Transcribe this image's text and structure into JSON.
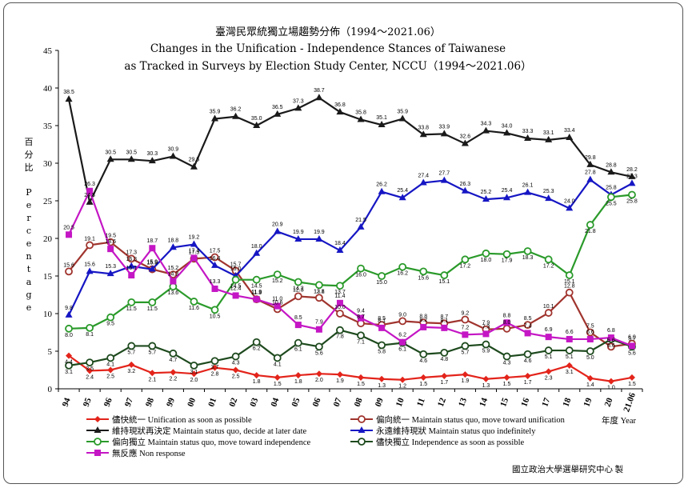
{
  "chart_data": {
    "type": "line",
    "title_zh": "臺灣民眾統獨立場趨勢分佈（1994～2021.06）",
    "title_en_1": "Changes in the Unification - Independence Stances of Taiwanese",
    "title_en_2": "as Tracked in Surveys by Election Study Center, NCCU（1994～2021.06）",
    "ylabel_zh": "百分比",
    "ylabel_en": "Percentage",
    "xlabel": "年度 Year",
    "credit": "國立政治大學選舉研究中心 製",
    "ylim": [
      0,
      45
    ],
    "yticks": [
      0,
      5,
      10,
      15,
      20,
      25,
      30,
      35,
      40,
      45
    ],
    "grid": false,
    "legend_position": "bottom",
    "categories": [
      "94",
      "95",
      "96",
      "97",
      "98",
      "99",
      "00",
      "01",
      "02",
      "03",
      "04",
      "05",
      "06",
      "07",
      "08",
      "09",
      "10",
      "11",
      "12",
      "13",
      "14",
      "15",
      "16",
      "17",
      "18",
      "19",
      "20",
      "21.06"
    ],
    "series": [
      {
        "name": "儘快統一 Unification as soon as possible",
        "color": "#e3241b",
        "marker": "diamond",
        "values": [
          4.4,
          2.4,
          2.5,
          3.2,
          2.1,
          2.2,
          2.0,
          2.8,
          2.5,
          1.8,
          1.5,
          1.8,
          2.0,
          1.9,
          1.5,
          1.3,
          1.2,
          1.5,
          1.7,
          1.9,
          1.3,
          1.5,
          1.7,
          2.3,
          3.1,
          1.4,
          1.0,
          1.5
        ]
      },
      {
        "name": "偏向統一 Maintain status quo, move toward unification",
        "color": "#a0342e",
        "marker": "circle-open",
        "values": [
          15.6,
          19.1,
          19.5,
          17.3,
          15.9,
          15.2,
          17.3,
          17.5,
          15.7,
          11.9,
          10.6,
          12.3,
          12.1,
          10.0,
          8.7,
          8.5,
          9.0,
          8.8,
          8.7,
          9.2,
          7.9,
          8.0,
          8.5,
          10.1,
          12.8,
          7.5,
          5.6,
          6.0
        ]
      },
      {
        "name": "維持現狀再決定 Maintain status quo, decide at later date",
        "color": "#1a1a1a",
        "marker": "triangle",
        "values": [
          38.5,
          24.8,
          30.5,
          30.5,
          30.3,
          30.9,
          29.5,
          35.9,
          36.2,
          35.0,
          36.5,
          37.3,
          38.7,
          36.8,
          35.8,
          35.1,
          35.9,
          33.8,
          33.9,
          32.6,
          34.3,
          34.0,
          33.3,
          33.1,
          33.4,
          29.8,
          28.8,
          28.2
        ]
      },
      {
        "name": "永遠維持現狀 Maintain status quo indefinitely",
        "color": "#1616c4",
        "marker": "triangle",
        "values": [
          9.8,
          15.6,
          15.3,
          16.3,
          15.9,
          18.8,
          19.2,
          16.4,
          15.0,
          18.0,
          20.9,
          19.9,
          19.9,
          18.4,
          21.5,
          26.2,
          25.4,
          27.4,
          27.7,
          26.3,
          25.2,
          25.4,
          26.1,
          25.3,
          24.0,
          27.8,
          25.8,
          27.3
        ]
      },
      {
        "name": "偏向獨立 Maintain status quo, move toward independence",
        "color": "#2a9a2a",
        "marker": "circle-open",
        "values": [
          8.0,
          8.1,
          9.5,
          11.5,
          11.5,
          13.6,
          11.6,
          10.5,
          14.5,
          14.5,
          15.2,
          14.2,
          13.8,
          13.7,
          16.0,
          15.0,
          16.2,
          15.6,
          15.1,
          17.2,
          18.0,
          17.9,
          18.3,
          17.2,
          15.1,
          21.8,
          25.5,
          25.8
        ]
      },
      {
        "name": "儘快獨立 Independence as soon as possible",
        "color": "#1e4a1e",
        "marker": "circle-open",
        "values": [
          3.1,
          3.5,
          4.1,
          5.7,
          5.7,
          4.7,
          3.1,
          3.7,
          4.3,
          6.2,
          4.1,
          6.1,
          5.6,
          7.8,
          7.1,
          5.8,
          6.1,
          4.6,
          4.8,
          5.7,
          5.9,
          4.3,
          4.6,
          5.1,
          5.1,
          5.0,
          6.6,
          5.6
        ]
      },
      {
        "name": "無反應 Non response",
        "color": "#c416c4",
        "marker": "square",
        "values": [
          20.5,
          26.3,
          18.6,
          15.1,
          18.7,
          14.3,
          17.4,
          13.3,
          12.4,
          11.9,
          11.0,
          8.5,
          7.9,
          11.4,
          9.4,
          8.1,
          6.2,
          8.2,
          8.1,
          7.2,
          7.3,
          8.8,
          7.4,
          6.9,
          6.6,
          6.6,
          6.8,
          5.7
        ]
      }
    ]
  }
}
